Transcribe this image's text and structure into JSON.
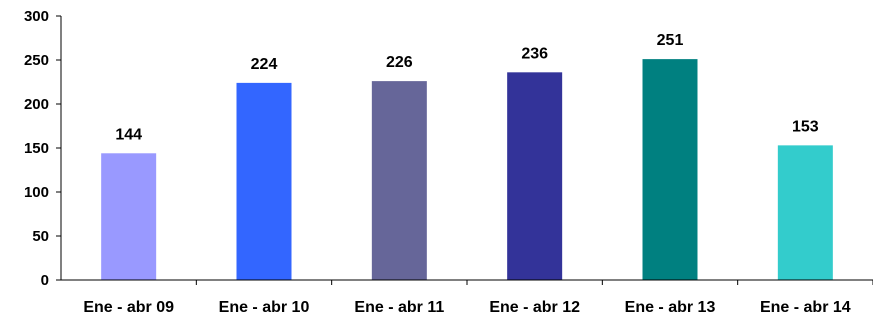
{
  "chart_data": {
    "type": "bar",
    "title": "",
    "xlabel": "",
    "ylabel": "",
    "categories": [
      "Ene - abr 09",
      "Ene - abr 10",
      "Ene - abr 11",
      "Ene - abr 12",
      "Ene - abr 13",
      "Ene - abr 14"
    ],
    "values": [
      144,
      224,
      226,
      236,
      251,
      153
    ],
    "data_labels": [
      "144",
      "224",
      "226",
      "236",
      "251",
      "153"
    ],
    "colors": [
      "#9999ff",
      "#3366ff",
      "#666699",
      "#333399",
      "#008080",
      "#33cccc"
    ],
    "ylim": [
      0,
      300
    ],
    "yticks": [
      0,
      50,
      100,
      150,
      200,
      250,
      300
    ],
    "ytick_labels": [
      "0",
      "50",
      "100",
      "150",
      "200",
      "250",
      "300"
    ],
    "grid": false,
    "legend": "none"
  }
}
